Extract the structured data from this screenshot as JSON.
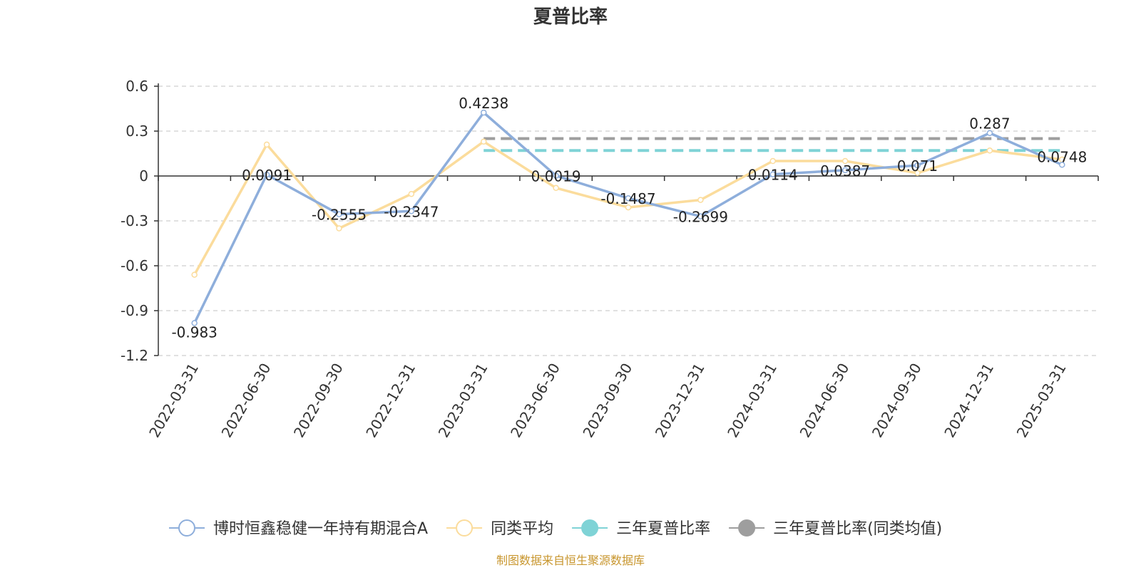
{
  "chart_data": {
    "type": "line",
    "title": "夏普比率",
    "categories": [
      "2022-03-31",
      "2022-06-30",
      "2022-09-30",
      "2022-12-31",
      "2023-03-31",
      "2023-06-30",
      "2023-09-30",
      "2023-12-31",
      "2024-03-31",
      "2024-06-30",
      "2024-09-30",
      "2024-12-31",
      "2025-03-31"
    ],
    "ylim": [
      -1.2,
      0.6
    ],
    "yticks": [
      "0.6",
      "0.3",
      "0",
      "-0.3",
      "-0.6",
      "-0.9",
      "-1.2"
    ],
    "grid": true,
    "legend_position": "bottom",
    "series": [
      {
        "name": "博时恒鑫稳健一年持有期混合A",
        "color": "#8eaedb",
        "values": [
          -0.983,
          0.0091,
          -0.2555,
          -0.2347,
          0.4238,
          0.0019,
          -0.1487,
          -0.2699,
          0.0114,
          0.0387,
          0.071,
          0.287,
          0.0748
        ],
        "labels": [
          "-0.983",
          "0.0091",
          "-0.2555",
          "-0.2347",
          "0.4238",
          "0.0019",
          "-0.1487",
          "-0.2699",
          "0.0114",
          "0.0387",
          "0.071",
          "0.287",
          "0.0748"
        ]
      },
      {
        "name": "同类平均",
        "color": "#fbdc9c",
        "values": [
          -0.66,
          0.21,
          -0.35,
          -0.12,
          0.23,
          -0.08,
          -0.21,
          -0.16,
          0.1,
          0.1,
          0.02,
          0.17,
          0.11
        ]
      },
      {
        "name": "三年夏普比率",
        "color": "#7fd3d6",
        "dashed_from": "2023-03-31",
        "dashed_to": "2025-03-31",
        "value": 0.17
      },
      {
        "name": "三年夏普比率(同类均值)",
        "color": "#9e9e9e",
        "dashed_from": "2023-03-31",
        "dashed_to": "2025-03-31",
        "value": 0.25
      }
    ],
    "source": "制图数据来自恒生聚源数据库"
  }
}
